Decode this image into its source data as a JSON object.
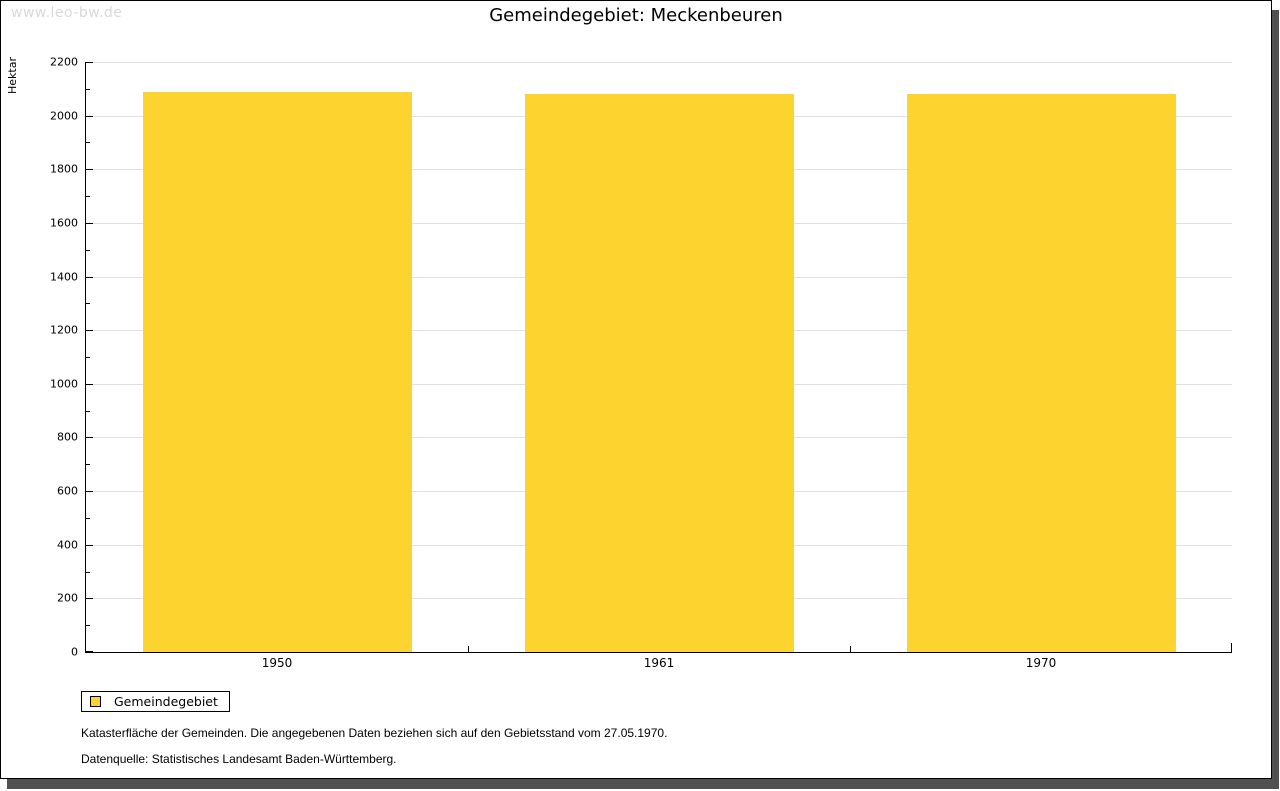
{
  "watermark": "www.leo-bw.de",
  "title": "Gemeindegebiet: Meckenbeuren",
  "chart_data": {
    "type": "bar",
    "title": "Gemeindegebiet: Meckenbeuren",
    "ylabel": "Hektar",
    "xlabel": "",
    "categories": [
      "1950",
      "1961",
      "1970"
    ],
    "series": [
      {
        "name": "Gemeindegebiet",
        "color": "#FCD32F",
        "values": [
          2088,
          2082,
          2079
        ]
      }
    ],
    "ylim": [
      0,
      2200
    ],
    "yticks": [
      0,
      200,
      400,
      600,
      800,
      1000,
      1200,
      1400,
      1600,
      1800,
      2000,
      2200
    ],
    "minor_ytick_step": 100,
    "grid": true,
    "gridline_color": "#E0E0E0",
    "legend_position": "bottom-left"
  },
  "legend": {
    "items": [
      {
        "label": "Gemeindegebiet",
        "color": "#FCD32F"
      }
    ]
  },
  "footnotes": [
    "Katasterfläche der Gemeinden. Die angegebenen Daten beziehen sich auf den Gebietsstand vom 27.05.1970.",
    "Datenquelle: Statistisches Landesamt Baden-Württemberg."
  ]
}
